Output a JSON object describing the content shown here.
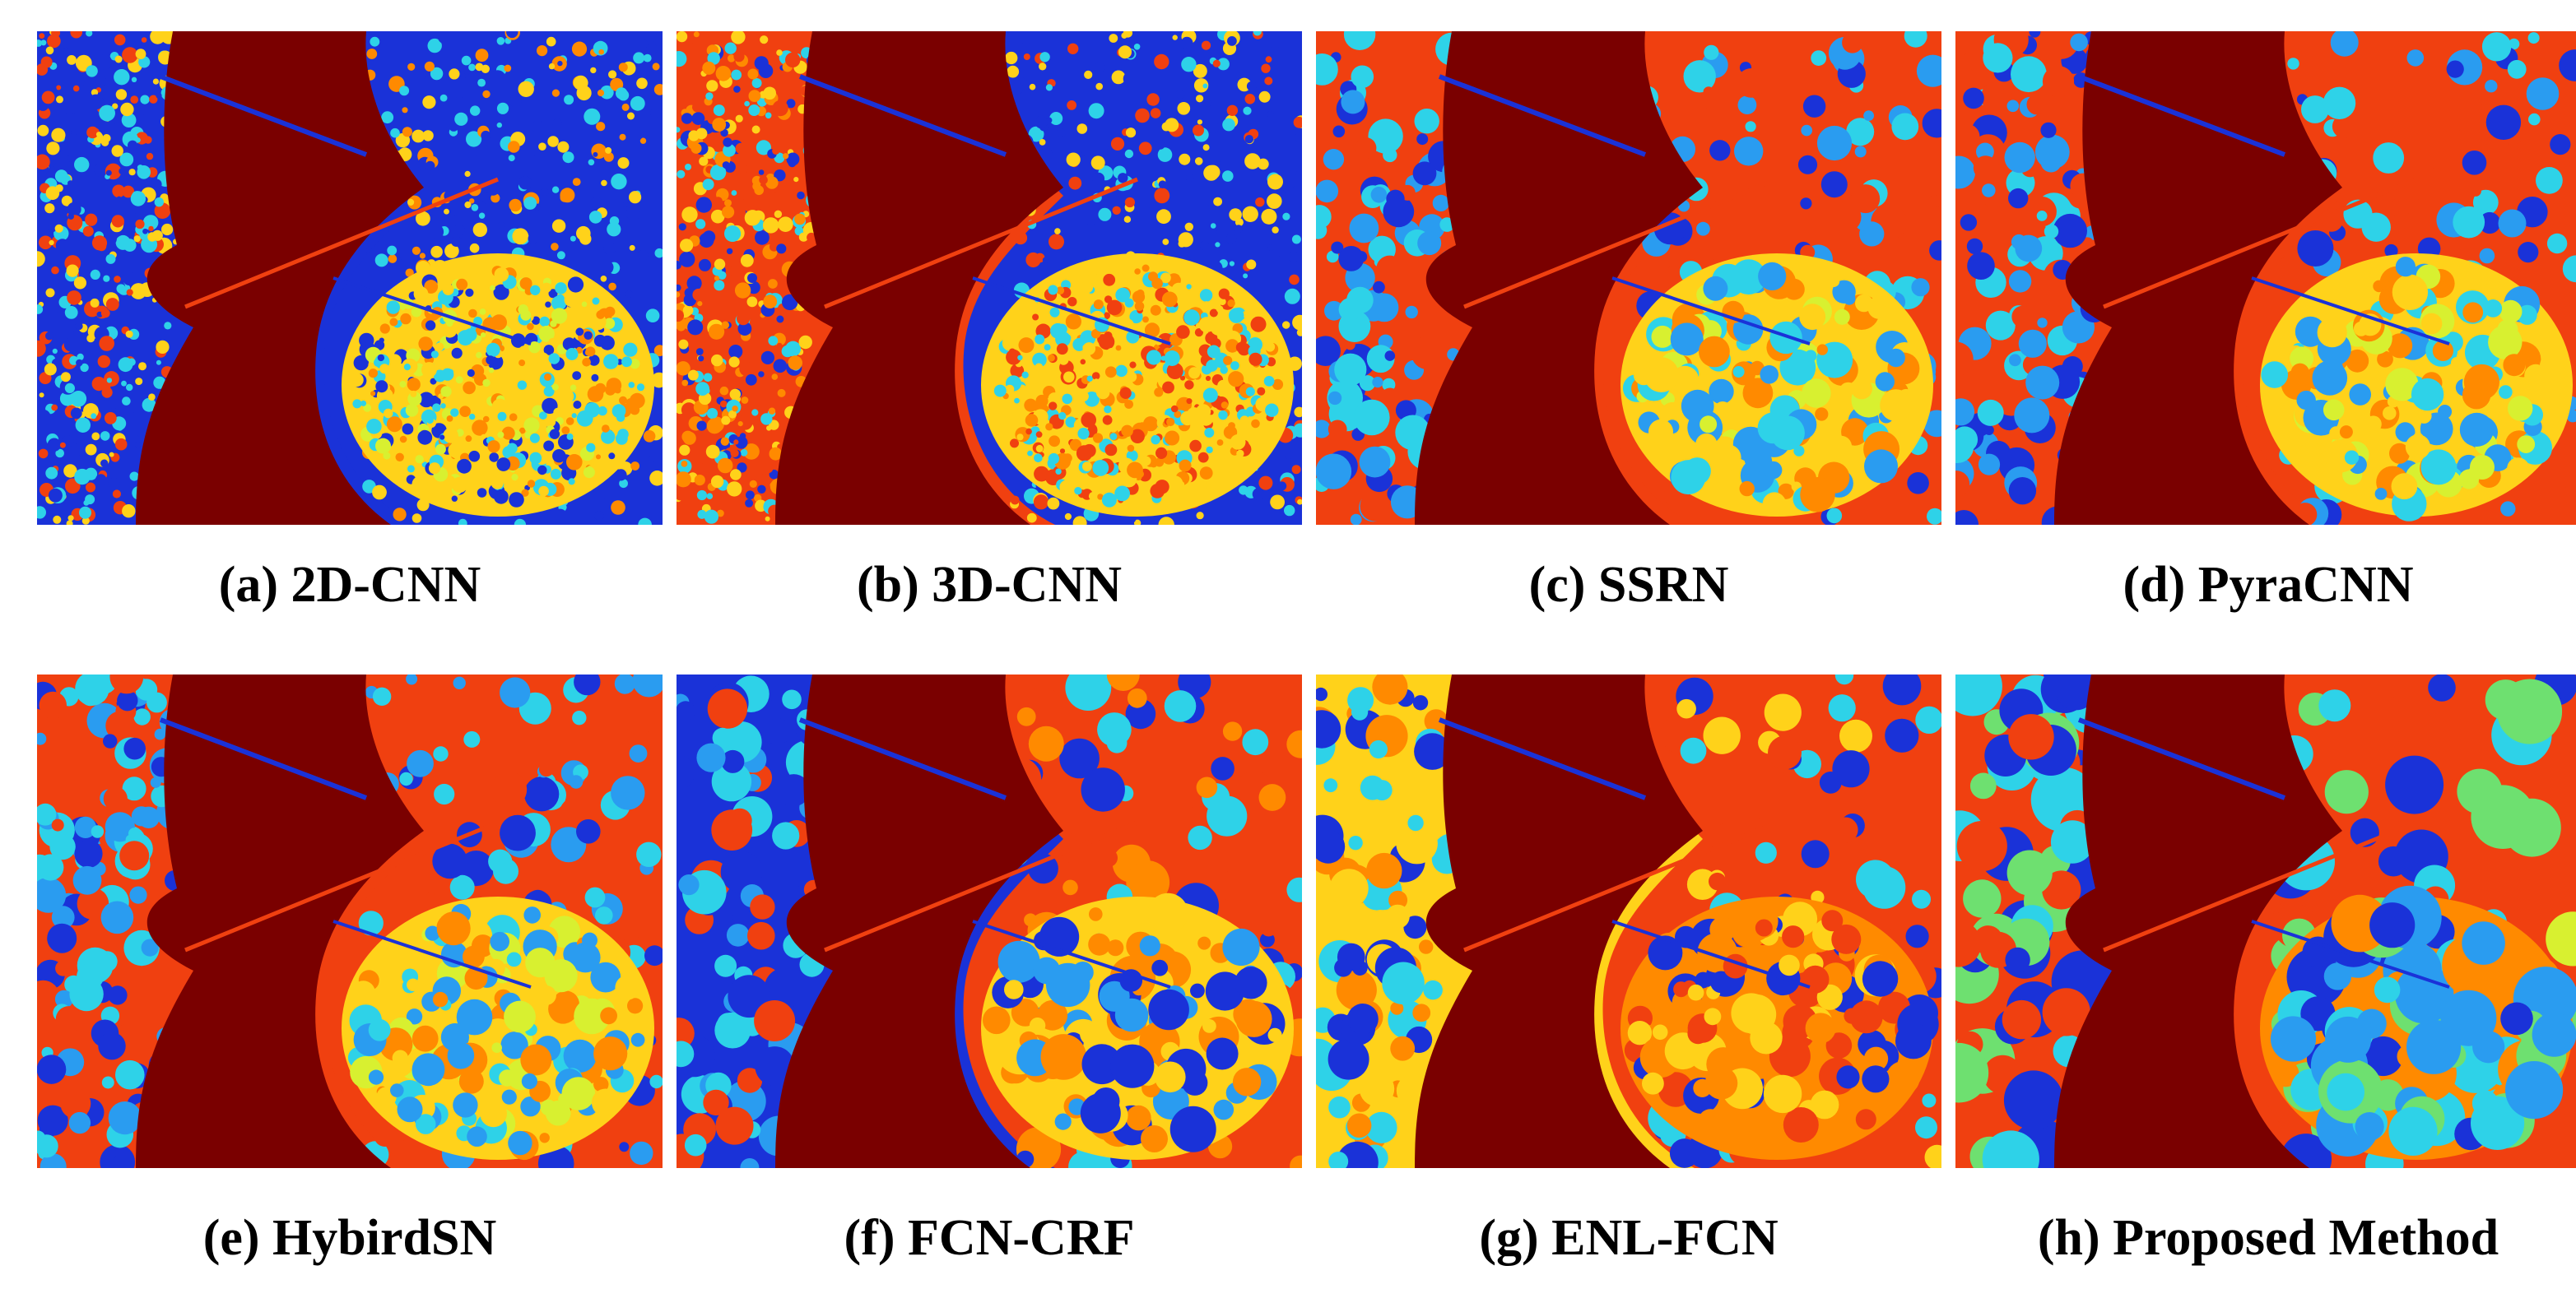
{
  "figure": {
    "palette": {
      "sea": "#7a0000",
      "land_red": "#f04010",
      "orange": "#ff8a00",
      "yellow": "#ffd21a",
      "lime": "#d8f030",
      "cyan": "#2ed2e8",
      "light_blue": "#2a9cf0",
      "blue": "#1a32d8",
      "dark_red": "#b00000",
      "green": "#6ee070"
    },
    "panels": [
      {
        "id": "a",
        "caption": "(a) 2D-CNN",
        "style": "noisy"
      },
      {
        "id": "b",
        "caption": "(b) 3D-CNN",
        "style": "noisy-red"
      },
      {
        "id": "c",
        "caption": "(c) SSRN",
        "style": "smooth"
      },
      {
        "id": "d",
        "caption": "(d) PyraCNN",
        "style": "smooth"
      },
      {
        "id": "e",
        "caption": "(e) HybirdSN",
        "style": "smooth"
      },
      {
        "id": "f",
        "caption": "(f) FCN-CRF",
        "style": "blobby"
      },
      {
        "id": "g",
        "caption": "(g) ENL-FCN",
        "style": "yellow-left"
      },
      {
        "id": "h",
        "caption": "(h) Proposed Method",
        "style": "patchy"
      }
    ]
  }
}
